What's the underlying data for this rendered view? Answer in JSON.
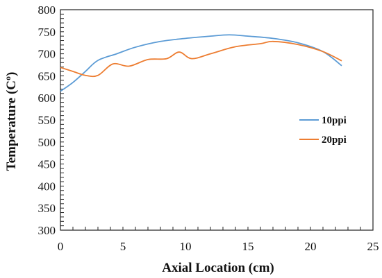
{
  "chart_data": {
    "type": "line",
    "xlabel": "Axial Location (cm)",
    "ylabel": "Temperature (C",
    "ylabel_sup": "o",
    "ylabel_end": ")",
    "xlim": [
      0,
      25
    ],
    "ylim": [
      300,
      800
    ],
    "xticks": [
      0,
      5,
      10,
      15,
      20,
      25
    ],
    "yticks": [
      300,
      350,
      400,
      450,
      500,
      550,
      600,
      650,
      700,
      750,
      800
    ],
    "grid": false,
    "legend_position": "right",
    "series": [
      {
        "name": "10ppi",
        "color": "#5b9bd5",
        "x": [
          0,
          1,
          2,
          3,
          4.5,
          6,
          8,
          10,
          12,
          13.5,
          15,
          17,
          19,
          21,
          22.5
        ],
        "y": [
          615,
          635,
          660,
          685,
          700,
          715,
          728,
          735,
          740,
          743,
          740,
          735,
          725,
          705,
          673
        ]
      },
      {
        "name": "20ppi",
        "color": "#ed7d31",
        "x": [
          0,
          1,
          2,
          3,
          4.2,
          5.5,
          7,
          8.5,
          9.5,
          10.5,
          12,
          14,
          16,
          17,
          19,
          21,
          22.5
        ],
        "y": [
          669,
          660,
          651,
          651,
          677,
          672,
          687,
          689,
          704,
          689,
          700,
          716,
          723,
          728,
          721,
          705,
          684
        ]
      }
    ]
  }
}
